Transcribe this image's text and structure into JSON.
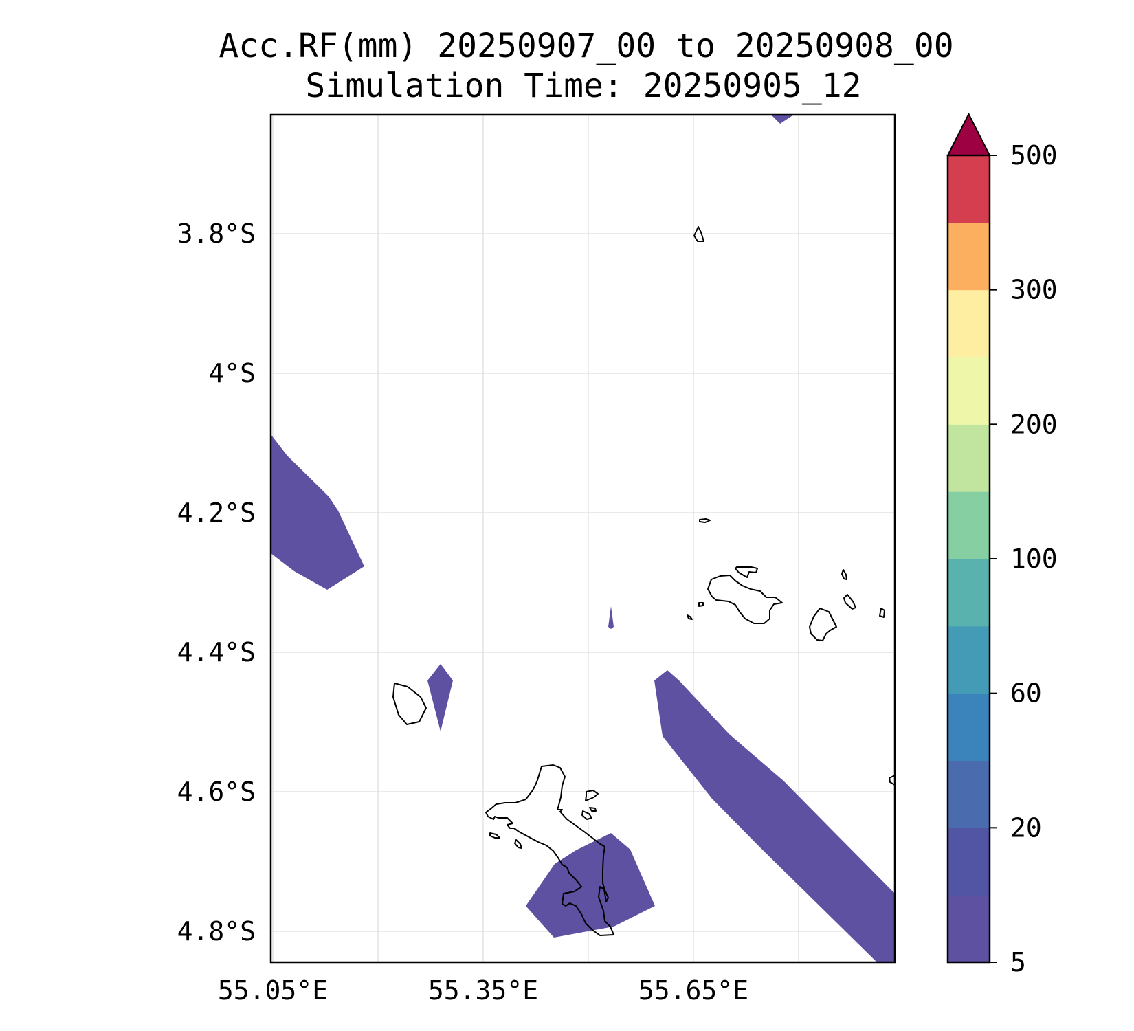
{
  "title": {
    "line1": "Acc.RF(mm) 20250907_00 to 20250908_00",
    "line2": "Simulation Time: 20250905_12"
  },
  "map": {
    "lon_range": [
      55.05,
      55.95
    ],
    "lat_range": [
      -4.84,
      -3.63
    ],
    "lon_ticks": [
      {
        "value": 55.05,
        "label": "55.05°E"
      },
      {
        "value": 55.35,
        "label": "55.35°E"
      },
      {
        "value": 55.65,
        "label": "55.65°E"
      }
    ],
    "lon_grid": [
      55.05,
      55.2,
      55.35,
      55.5,
      55.65,
      55.8,
      55.95
    ],
    "lat_ticks": [
      {
        "value": -3.8,
        "label": "3.8°S"
      },
      {
        "value": -4.0,
        "label": "4°S"
      },
      {
        "value": -4.2,
        "label": "4.2°S"
      },
      {
        "value": -4.4,
        "label": "4.4°S"
      },
      {
        "value": -4.6,
        "label": "4.6°S"
      },
      {
        "value": -4.8,
        "label": "4.8°S"
      }
    ],
    "grid": true,
    "rain_color": "#5e51a2"
  },
  "colorbar": {
    "levels": [
      5,
      10,
      20,
      40,
      60,
      80,
      100,
      150,
      200,
      250,
      300,
      400,
      500
    ],
    "colors": [
      "#5e51a2",
      "#5155a3",
      "#4a6cae",
      "#3a83bb",
      "#449bb6",
      "#59b2ae",
      "#86cfa2",
      "#c1e59e",
      "#edf6a9",
      "#feeea2",
      "#fcaf5f",
      "#d53e4e"
    ],
    "extend_color": "#9e0142",
    "tick_labels": [
      {
        "level": 5,
        "label": "5"
      },
      {
        "level": 20,
        "label": "20"
      },
      {
        "level": 60,
        "label": "60"
      },
      {
        "level": 100,
        "label": "100"
      },
      {
        "level": 200,
        "label": "200"
      },
      {
        "level": 300,
        "label": "300"
      },
      {
        "level": 500,
        "label": "500"
      }
    ]
  }
}
